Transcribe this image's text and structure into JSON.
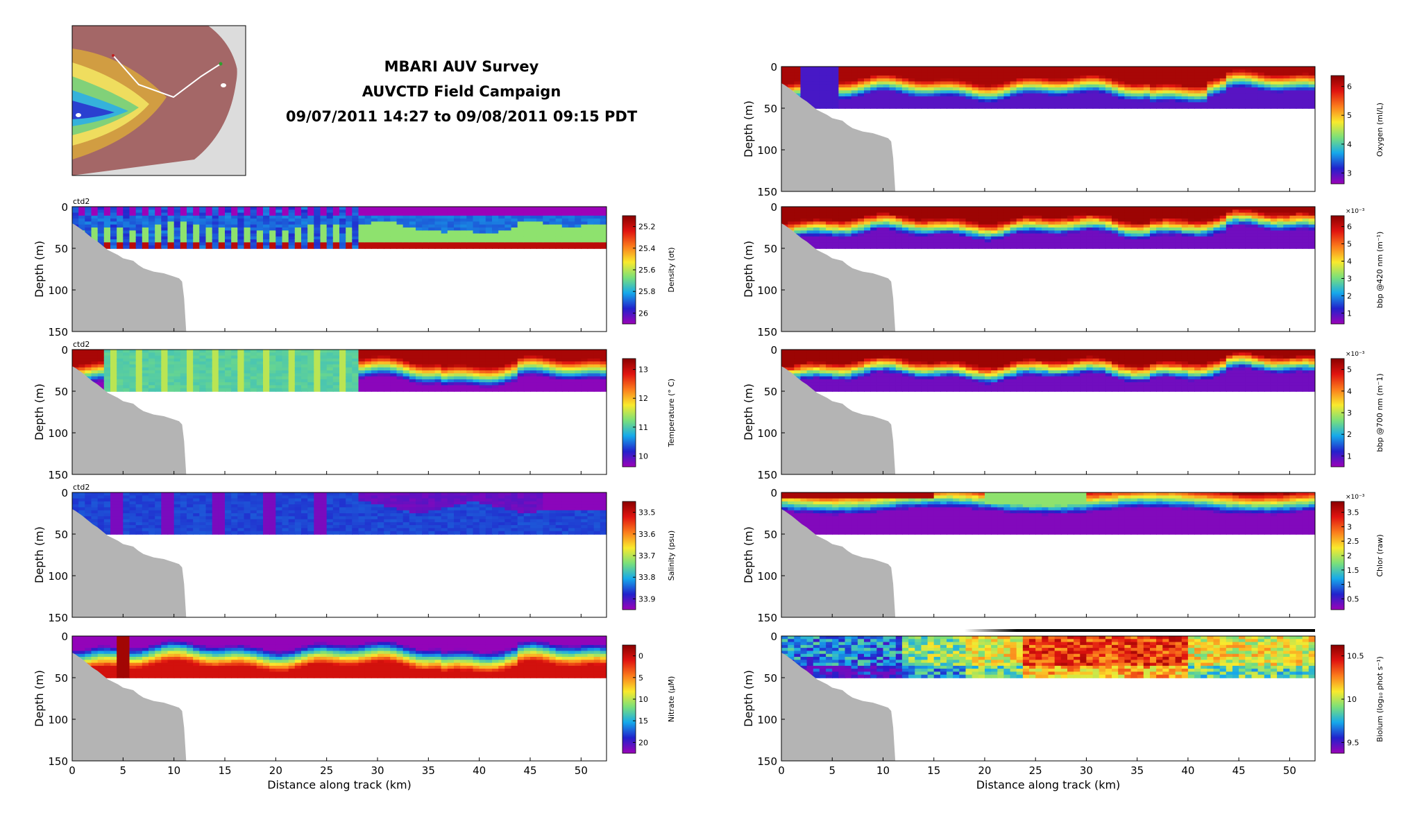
{
  "header": {
    "line1": "MBARI AUV Survey",
    "line2": "AUVCTD Field Campaign",
    "line3": "09/07/2011 14:27 to 09/08/2011 09:15 PDT"
  },
  "colors": {
    "terrain": "#b4b4b4",
    "colormap": [
      "#9c02b8",
      "#2222cc",
      "#16a9ea",
      "#7be07a",
      "#f9ea2d",
      "#fb7d1c",
      "#e01410",
      "#8a0000"
    ]
  },
  "chart_data": [
    {
      "type": "heatmap",
      "id": "density",
      "column": "left",
      "row": 0,
      "instrument": "ctd2",
      "xlabel": "",
      "ylabel": "Depth (m)",
      "x": [
        0,
        5,
        10,
        15,
        20,
        25,
        30,
        35,
        40,
        45,
        50
      ],
      "xlim": [
        0,
        52.5
      ],
      "y_ticks": [
        0,
        50,
        100,
        150
      ],
      "ylim": [
        150,
        0
      ],
      "colorbar": {
        "label": "Density (σt)",
        "ticks": [
          "25.2",
          "25.4",
          "25.6",
          "25.8",
          "26"
        ],
        "reversed": true
      },
      "pattern": "ctd"
    },
    {
      "type": "heatmap",
      "id": "temperature",
      "column": "left",
      "row": 1,
      "instrument": "ctd2",
      "xlabel": "",
      "ylabel": "Depth (m)",
      "x": [
        0,
        5,
        10,
        15,
        20,
        25,
        30,
        35,
        40,
        45,
        50
      ],
      "xlim": [
        0,
        52.5
      ],
      "y_ticks": [
        0,
        50,
        100,
        150
      ],
      "ylim": [
        150,
        0
      ],
      "colorbar": {
        "label": "Temperature (° C)",
        "ticks": [
          "13",
          "12",
          "11",
          "10"
        ],
        "reversed": false
      },
      "pattern": "temperature"
    },
    {
      "type": "heatmap",
      "id": "salinity",
      "column": "left",
      "row": 2,
      "instrument": "ctd2",
      "xlabel": "",
      "ylabel": "Depth (m)",
      "x": [
        0,
        5,
        10,
        15,
        20,
        25,
        30,
        35,
        40,
        45,
        50
      ],
      "xlim": [
        0,
        52.5
      ],
      "y_ticks": [
        0,
        50,
        100,
        150
      ],
      "ylim": [
        150,
        0
      ],
      "colorbar": {
        "label": "Salinity (psu)",
        "ticks": [
          "33.5",
          "33.6",
          "33.7",
          "33.8",
          "33.9"
        ],
        "reversed": true
      },
      "pattern": "salinity"
    },
    {
      "type": "heatmap",
      "id": "nitrate",
      "column": "left",
      "row": 3,
      "instrument": "",
      "xlabel": "Distance along track (km)",
      "ylabel": "Depth (m)",
      "x": [
        0,
        5,
        10,
        15,
        20,
        25,
        30,
        35,
        40,
        45,
        50
      ],
      "xlim": [
        0,
        52.5
      ],
      "y_ticks": [
        0,
        50,
        100,
        150
      ],
      "ylim": [
        150,
        0
      ],
      "colorbar": {
        "label": "Nitrate (μM)",
        "ticks": [
          "0",
          "5",
          "10",
          "15",
          "20"
        ],
        "reversed": true
      },
      "pattern": "nitrate"
    },
    {
      "type": "heatmap",
      "id": "oxygen",
      "column": "right",
      "row": 0,
      "instrument": "",
      "xlabel": "",
      "ylabel": "Depth (m)",
      "x": [
        0,
        5,
        10,
        15,
        20,
        25,
        30,
        35,
        40,
        45,
        50
      ],
      "xlim": [
        0,
        52.5
      ],
      "y_ticks": [
        0,
        50,
        100,
        150
      ],
      "ylim": [
        150,
        0
      ],
      "colorbar": {
        "label": "Oxygen (ml/L)",
        "ticks": [
          "6",
          "5",
          "4",
          "3"
        ],
        "reversed": false
      },
      "pattern": "oxygen"
    },
    {
      "type": "heatmap",
      "id": "bbp420",
      "column": "right",
      "row": 1,
      "instrument": "",
      "xlabel": "",
      "ylabel": "Depth (m)",
      "x": [
        0,
        5,
        10,
        15,
        20,
        25,
        30,
        35,
        40,
        45,
        50
      ],
      "xlim": [
        0,
        52.5
      ],
      "y_ticks": [
        0,
        50,
        100,
        150
      ],
      "ylim": [
        150,
        0
      ],
      "colorbar": {
        "label": "bbp @420 nm (m⁻¹)",
        "ticks": [
          "6",
          "5",
          "4",
          "3",
          "2",
          "1"
        ],
        "reversed": false,
        "scale": "×10⁻³"
      },
      "pattern": "bbp"
    },
    {
      "type": "heatmap",
      "id": "bbp700",
      "column": "right",
      "row": 2,
      "instrument": "",
      "xlabel": "",
      "ylabel": "Depth (m)",
      "x": [
        0,
        5,
        10,
        15,
        20,
        25,
        30,
        35,
        40,
        45,
        50
      ],
      "xlim": [
        0,
        52.5
      ],
      "y_ticks": [
        0,
        50,
        100,
        150
      ],
      "ylim": [
        150,
        0
      ],
      "colorbar": {
        "label": "bbp @700 nm (m⁻1)",
        "ticks": [
          "5",
          "4",
          "3",
          "2",
          "1"
        ],
        "reversed": false,
        "scale": "×10⁻³"
      },
      "pattern": "bbp"
    },
    {
      "type": "heatmap",
      "id": "chlor",
      "column": "right",
      "row": 3,
      "instrument": "",
      "xlabel": "",
      "ylabel": "Depth (m)",
      "x": [
        0,
        5,
        10,
        15,
        20,
        25,
        30,
        35,
        40,
        45,
        50
      ],
      "xlim": [
        0,
        52.5
      ],
      "y_ticks": [
        0,
        50,
        100,
        150
      ],
      "ylim": [
        150,
        0
      ],
      "colorbar": {
        "label": "Chlor (raw)",
        "ticks": [
          "3.5",
          "3",
          "2.5",
          "2",
          "1.5",
          "1",
          "0.5"
        ],
        "reversed": false,
        "scale": "×10⁻³"
      },
      "pattern": "chlor"
    },
    {
      "type": "heatmap",
      "id": "biolum",
      "column": "right",
      "row": 4,
      "instrument": "",
      "xlabel": "Distance along track (km)",
      "ylabel": "Depth (m)",
      "x": [
        0,
        5,
        10,
        15,
        20,
        25,
        30,
        35,
        40,
        45,
        50
      ],
      "xlim": [
        0,
        52.5
      ],
      "y_ticks": [
        0,
        50,
        100,
        150
      ],
      "ylim": [
        150,
        0
      ],
      "colorbar": {
        "label": "Biolum (log₁₀ phot s⁻¹)",
        "ticks": [
          "10.5",
          "10",
          "9.5"
        ],
        "reversed": false
      },
      "pattern": "biolum"
    }
  ],
  "map": {
    "has_track": true
  }
}
